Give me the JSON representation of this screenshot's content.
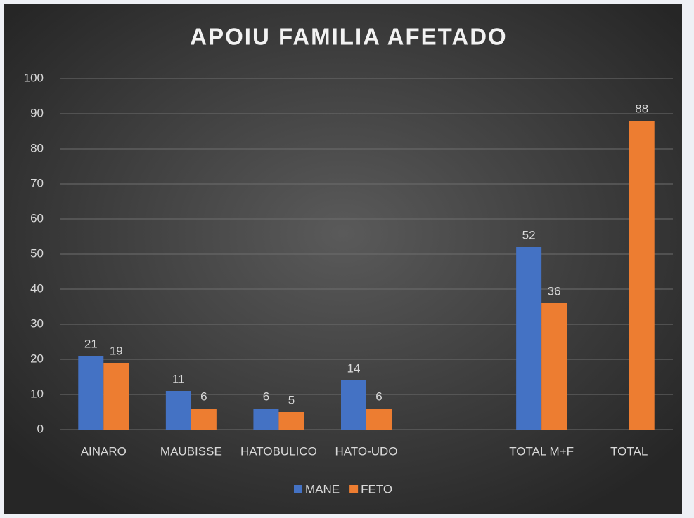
{
  "chart_data": {
    "type": "bar",
    "title": "APOIU FAMILIA AFETADO",
    "categories": [
      "AINARO",
      "MAUBISSE",
      "HATOBULICO",
      "HATO-UDO",
      null,
      "TOTAL M+F",
      "TOTAL"
    ],
    "series": [
      {
        "name": "MANE",
        "color": "#4472c4",
        "values": [
          21,
          11,
          6,
          14,
          null,
          52,
          null
        ]
      },
      {
        "name": "FETO",
        "color": "#ed7d31",
        "values": [
          19,
          6,
          5,
          6,
          null,
          36,
          88
        ]
      }
    ],
    "ylim": [
      0,
      100
    ],
    "yticks": [
      0,
      10,
      20,
      30,
      40,
      50,
      60,
      70,
      80,
      90,
      100
    ],
    "grid": true,
    "legend": "bottom"
  }
}
